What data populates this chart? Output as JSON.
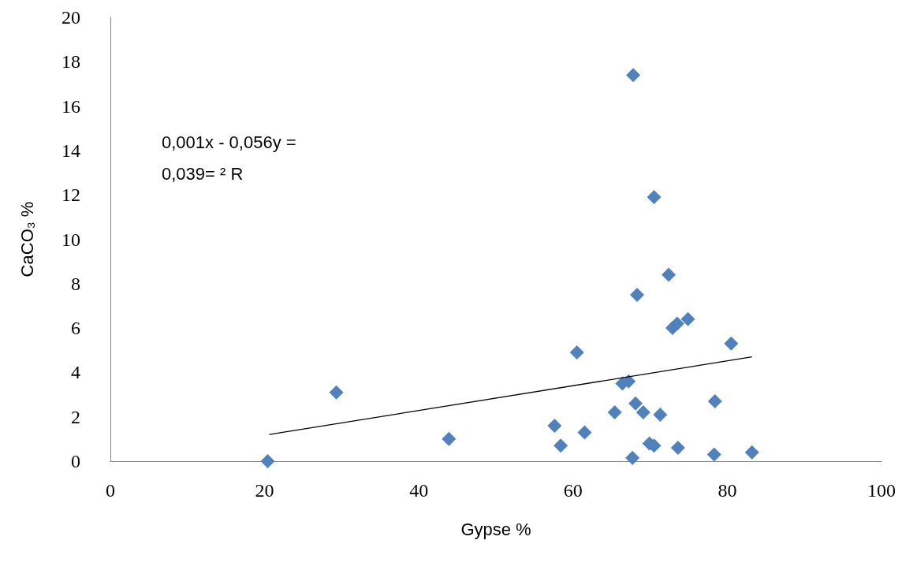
{
  "chart_data": {
    "type": "scatter",
    "xlabel": "Gypse %",
    "ylabel": "CaCO₃ %",
    "annotations": [
      "0,001x - 0,056y =\n0,039= ² R"
    ],
    "xlim": [
      0,
      100
    ],
    "xticks": [
      0,
      20,
      40,
      60,
      80,
      100
    ],
    "ylim": [
      0,
      20
    ],
    "yticks": [
      0,
      2,
      4,
      6,
      8,
      10,
      12,
      14,
      16,
      18,
      20
    ],
    "grid": false,
    "marker": "diamond",
    "series": [
      {
        "color": "#4f81bd",
        "x": [
          20.4,
          29.3,
          43.9,
          67.8,
          70.5,
          72.4,
          68.3,
          74.9,
          72.9,
          73.5,
          80.5,
          60.5,
          66.4,
          67.2,
          78.4,
          68.1,
          69.1,
          71.3,
          65.4,
          57.6,
          61.5,
          58.4,
          69.9,
          70.5,
          73.6,
          67.7,
          78.3,
          83.2
        ],
        "values": [
          0,
          3.1,
          1.0,
          17.4,
          11.9,
          8.4,
          7.5,
          6.4,
          6.0,
          6.2,
          5.3,
          4.9,
          3.5,
          3.6,
          2.7,
          2.6,
          2.2,
          2.1,
          2.2,
          1.6,
          1.3,
          0.7,
          0.8,
          0.7,
          0.6,
          0.15,
          0.3,
          0.4
        ]
      },
      {
        "type": "line",
        "color": "#000000",
        "line_style": "solid",
        "marker": "none",
        "x": [
          20.6,
          83.2
        ],
        "values": [
          1.2,
          4.7
        ]
      }
    ]
  }
}
